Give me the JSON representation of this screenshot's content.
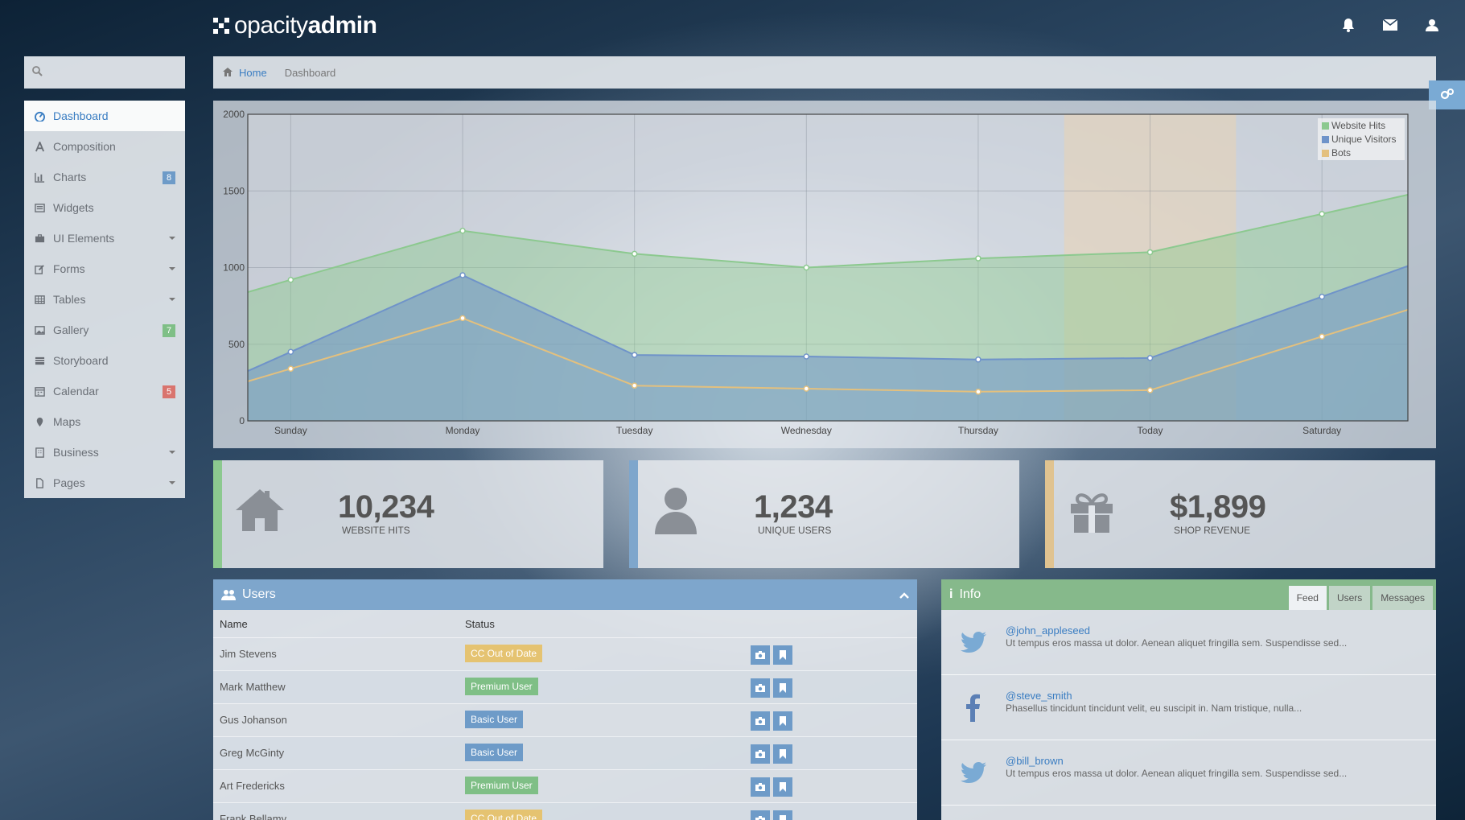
{
  "app": {
    "brand_light": "opacity",
    "brand_bold": "admin"
  },
  "topbar": {
    "icons": [
      "bell-icon",
      "envelope-icon",
      "user-icon"
    ]
  },
  "search": {
    "placeholder": ""
  },
  "sidebar": {
    "items": [
      {
        "label": "Dashboard",
        "icon": "dashboard-icon",
        "active": true
      },
      {
        "label": "Composition",
        "icon": "font-icon"
      },
      {
        "label": "Charts",
        "icon": "bar-chart-icon",
        "badge": "8",
        "badge_color": "#6e9bc8"
      },
      {
        "label": "Widgets",
        "icon": "list-alt-icon"
      },
      {
        "label": "UI Elements",
        "icon": "briefcase-icon",
        "caret": true
      },
      {
        "label": "Forms",
        "icon": "edit-icon",
        "caret": true
      },
      {
        "label": "Tables",
        "icon": "table-icon",
        "caret": true
      },
      {
        "label": "Gallery",
        "icon": "picture-icon",
        "badge": "7",
        "badge_color": "#7fbf86"
      },
      {
        "label": "Storyboard",
        "icon": "storyboard-icon"
      },
      {
        "label": "Calendar",
        "icon": "calendar-icon",
        "badge": "5",
        "badge_color": "#d9746e"
      },
      {
        "label": "Maps",
        "icon": "map-marker-icon"
      },
      {
        "label": "Business",
        "icon": "building-icon",
        "caret": true
      },
      {
        "label": "Pages",
        "icon": "file-icon",
        "caret": true
      }
    ]
  },
  "breadcrumb": {
    "home": "Home",
    "current": "Dashboard"
  },
  "chart_data": {
    "type": "area",
    "categories": [
      "Sunday",
      "Monday",
      "Tuesday",
      "Wednesday",
      "Thursday",
      "Today",
      "Saturday"
    ],
    "ylim": [
      0,
      2000
    ],
    "yticks": [
      "2000",
      "1500",
      "1000",
      "500",
      "0"
    ],
    "grid": true,
    "legend_position": "top-right",
    "highlight_category": "Today",
    "series": [
      {
        "name": "Website Hits",
        "color": "#8cc98f",
        "values": [
          920,
          1240,
          1090,
          1000,
          1060,
          1100,
          1350
        ]
      },
      {
        "name": "Unique Visitors",
        "color": "#6f93c9",
        "values": [
          450,
          950,
          430,
          420,
          400,
          410,
          810
        ]
      },
      {
        "name": "Bots",
        "color": "#e3c07e",
        "values": [
          340,
          670,
          230,
          210,
          190,
          200,
          550
        ]
      }
    ]
  },
  "stats": [
    {
      "value": "10,234",
      "label": "WEBSITE HITS",
      "icon": "home-icon",
      "color": "#8cc98f"
    },
    {
      "value": "1,234",
      "label": "UNIQUE USERS",
      "icon": "user-icon",
      "color": "#7ea6cc"
    },
    {
      "value": "$1,899",
      "label": "SHOP REVENUE",
      "icon": "gift-icon",
      "color": "#e0c390"
    }
  ],
  "users_panel": {
    "title": "Users",
    "columns": [
      "Name",
      "Status"
    ],
    "rows": [
      {
        "name": "Jim Stevens",
        "status": "CC Out of Date",
        "status_color": "#e5c371"
      },
      {
        "name": "Mark Matthew",
        "status": "Premium User",
        "status_color": "#7fbf86"
      },
      {
        "name": "Gus Johanson",
        "status": "Basic User",
        "status_color": "#6e9bc8"
      },
      {
        "name": "Greg McGinty",
        "status": "Basic User",
        "status_color": "#6e9bc8"
      },
      {
        "name": "Art Fredericks",
        "status": "Premium User",
        "status_color": "#7fbf86"
      },
      {
        "name": "Frank Bellamy",
        "status": "CC Out of Date",
        "status_color": "#e5c371"
      }
    ]
  },
  "info_panel": {
    "title": "Info",
    "tabs": [
      "Feed",
      "Users",
      "Messages"
    ],
    "active_tab": "Feed",
    "feed": [
      {
        "user": "@john_appleseed",
        "text": "Ut tempus eros massa ut dolor. Aenean aliquet fringilla sem. Suspendisse sed...",
        "icon": "twitter-icon"
      },
      {
        "user": "@steve_smith",
        "text": "Phasellus tincidunt tincidunt velit, eu suscipit in. Nam tristique, nulla...",
        "icon": "facebook-icon"
      },
      {
        "user": "@bill_brown",
        "text": "Ut tempus eros massa ut dolor. Aenean aliquet fringilla sem. Suspendisse sed...",
        "icon": "twitter-icon"
      }
    ]
  }
}
